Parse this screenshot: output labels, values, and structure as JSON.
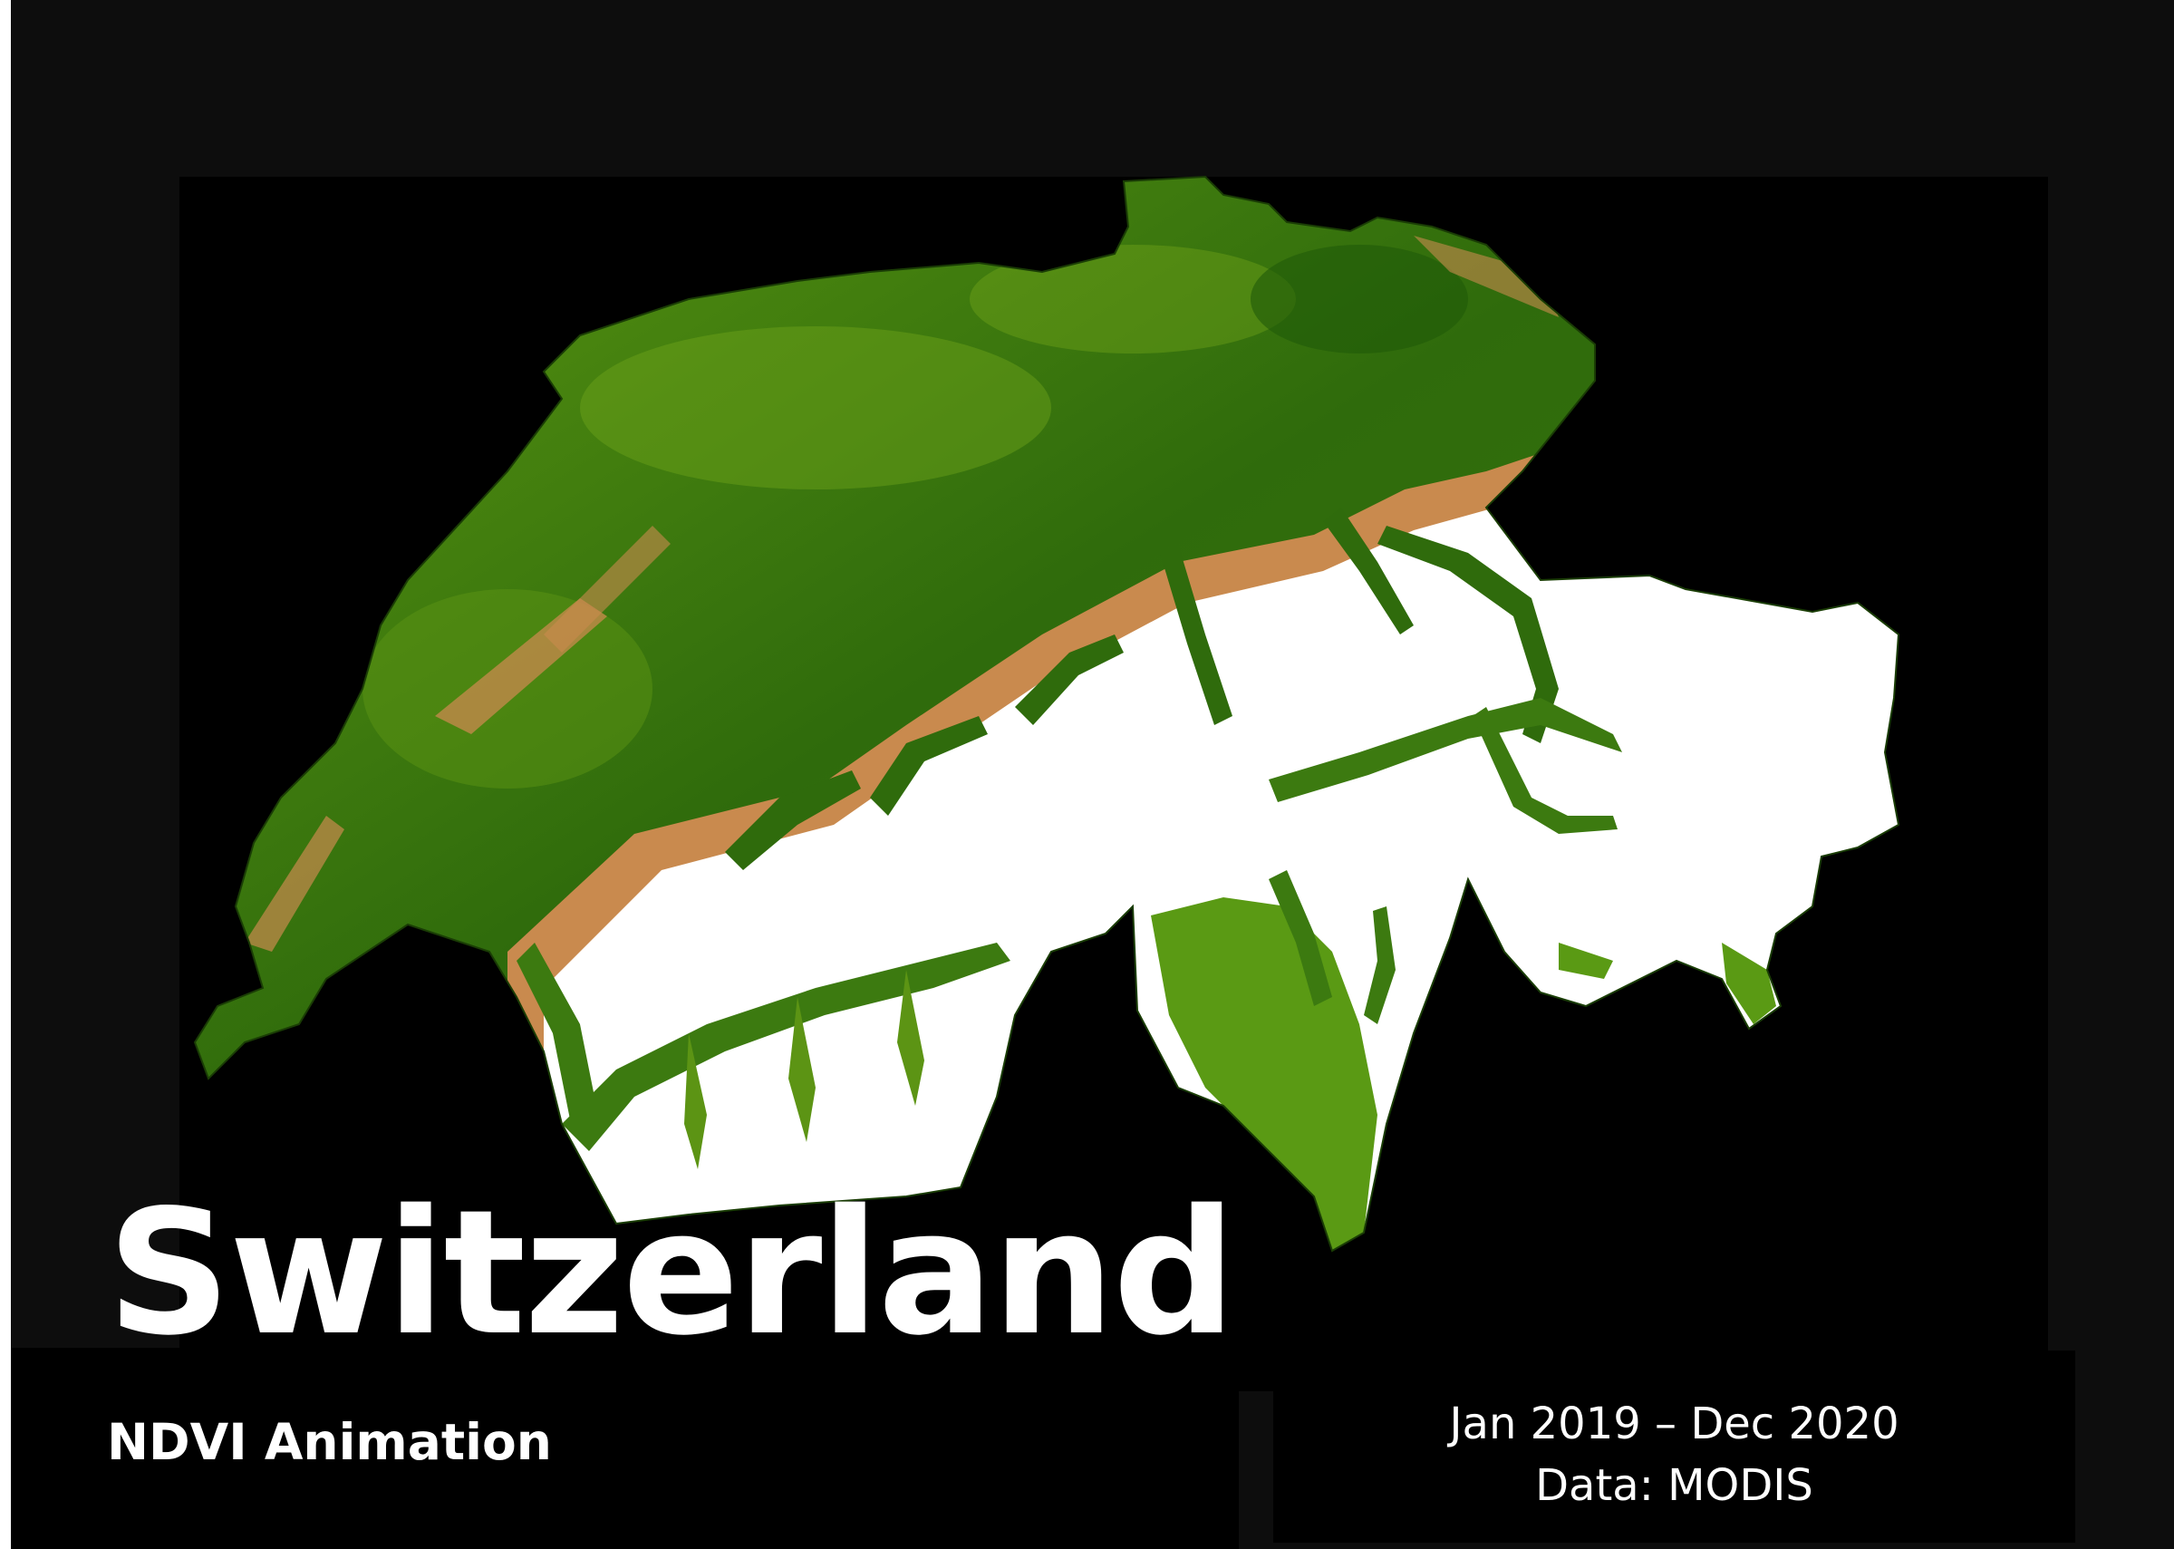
{
  "title": "Switzerland",
  "subtitle": "NDVI Animation",
  "period": "Jan 2019 – Dec 2020",
  "source": "Data: MODIS",
  "colors": {
    "background": "#0d0d0d",
    "map_frame": "#000000",
    "vegetation_dense": "#2f6b0c",
    "vegetation_light": "#6fa31a",
    "bare_ground": "#c98a4e",
    "snow": "#ffffff",
    "text": "#ffffff"
  }
}
